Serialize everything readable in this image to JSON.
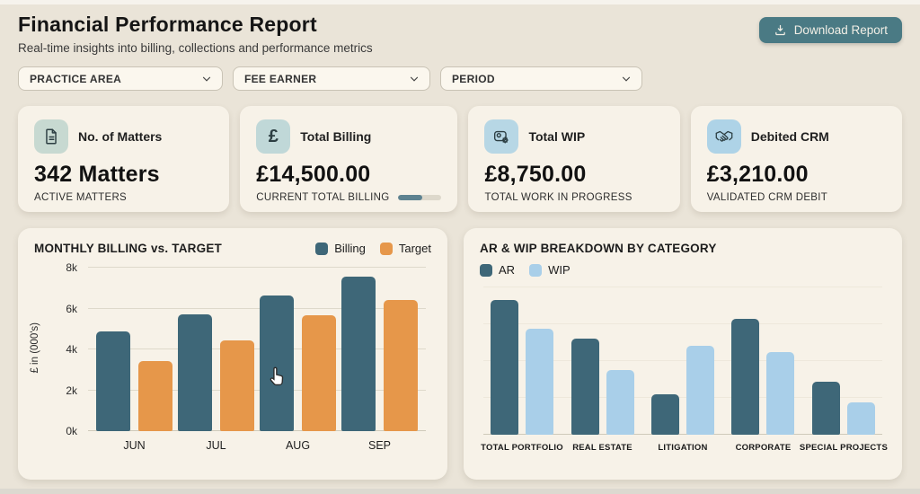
{
  "header": {
    "title": "Financial Performance Report",
    "subtitle": "Real-time insights into billing, collections and performance metrics",
    "download_label": "Download Report"
  },
  "filters": {
    "items": [
      {
        "label": "PRACTICE AREA"
      },
      {
        "label": "FEE EARNER"
      },
      {
        "label": "PERIOD"
      }
    ]
  },
  "kpis": [
    {
      "icon": "document-icon",
      "label": "No. of Matters",
      "value": "342 Matters",
      "sublabel": "ACTIVE MATTERS",
      "icon_bg": "#c7d9d1"
    },
    {
      "icon": "pound-icon",
      "label": "Total Billing",
      "value": "£14,500.00",
      "sublabel": "CURRENT TOTAL BILLING",
      "icon_bg": "#c0d8d8",
      "progress_pct": 55
    },
    {
      "icon": "wip-gear-icon",
      "label": "Total WIP",
      "value": "£8,750.00",
      "sublabel": "TOTAL WORK IN PROGRESS",
      "icon_bg": "#b7d7e5"
    },
    {
      "icon": "handshake-icon",
      "label": "Debited CRM",
      "value": "£3,210.00",
      "sublabel": "VALIDATED CRM DEBIT",
      "icon_bg": "#aed3e7"
    }
  ],
  "colors": {
    "accent_teal": "#4a7a84",
    "bar_dark": "#3e6778",
    "bar_orange": "#e6974a",
    "bar_lightblue": "#a9cfe9",
    "page_bg": "#eae4d8",
    "card_bg": "#f7f2e8"
  },
  "chart_data": [
    {
      "type": "bar",
      "title": "MONTHLY BILLING vs. TARGET",
      "categories": [
        "JUN",
        "JUL",
        "AUG",
        "SEP"
      ],
      "series": [
        {
          "name": "Billing",
          "color": "#3e6778",
          "values": [
            4.9,
            5.7,
            6.65,
            7.55
          ]
        },
        {
          "name": "Target",
          "color": "#e6974a",
          "values": [
            3.45,
            4.45,
            5.65,
            6.4
          ]
        }
      ],
      "xlabel": "",
      "ylabel": "£ in (000's)",
      "ylim": [
        0,
        8
      ],
      "yticks": [
        {
          "label": "0k",
          "value": 0
        },
        {
          "label": "2k",
          "value": 2
        },
        {
          "label": "4k",
          "value": 4
        },
        {
          "label": "6k",
          "value": 6
        },
        {
          "label": "8k",
          "value": 8
        }
      ],
      "grid": true,
      "legend_position": "top-right"
    },
    {
      "type": "bar",
      "title": "AR & WIP BREAKDOWN BY CATEGORY",
      "categories": [
        "TOTAL PORTFOLIO",
        "REAL ESTATE",
        "LITIGATION",
        "CORPORATE",
        "SPECIAL PROJECTS"
      ],
      "series": [
        {
          "name": "AR",
          "color": "#3e6778",
          "values": [
            7.3,
            5.2,
            2.2,
            6.3,
            2.9
          ]
        },
        {
          "name": "WIP",
          "color": "#a9cfe9",
          "values": [
            5.75,
            3.5,
            4.85,
            4.5,
            1.75
          ]
        }
      ],
      "xlabel": "",
      "ylabel": "",
      "ylim": [
        0,
        8
      ],
      "yticks": [],
      "grid_values": [
        2,
        4,
        6,
        8
      ],
      "baseline": true,
      "legend_position": "top-left"
    }
  ]
}
